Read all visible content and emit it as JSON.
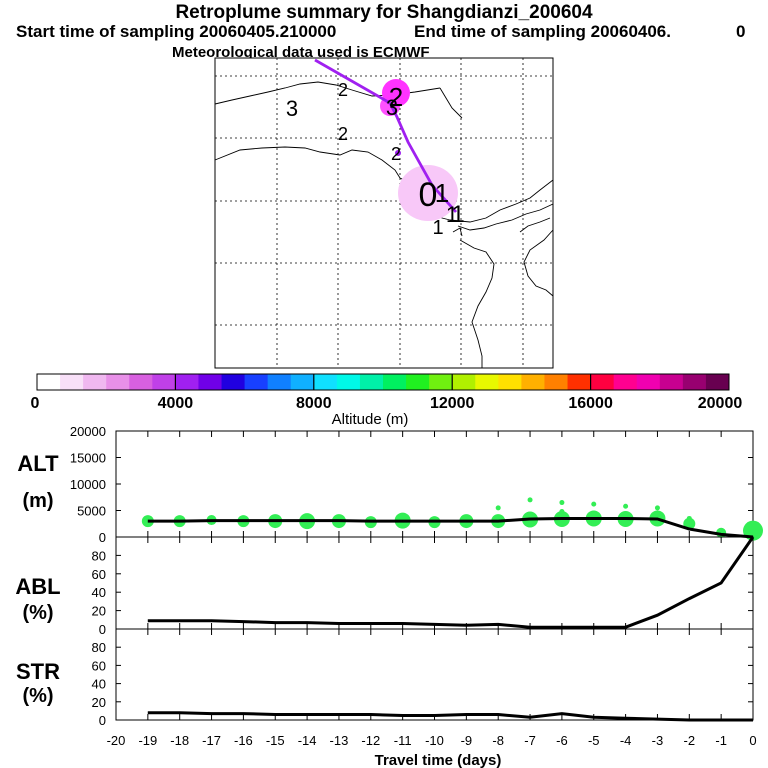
{
  "header": {
    "title": "Retroplume summary for Shangdianzi_200604",
    "start": "Start time of sampling 20060405.210000",
    "end": "End time of sampling 20060406.",
    "end_suffix": "0",
    "met": "Meteorological data used is ECMWF"
  },
  "colors": {
    "track": "#a020f0",
    "marker": "#ff33ff",
    "halo": "#f8c8f8",
    "alt_marker": "#33ee55",
    "line": "#000000"
  },
  "map": {
    "labels": [
      "3",
      "2",
      "2",
      "2",
      "3",
      "2",
      "1",
      "1",
      "1",
      "1",
      "0"
    ]
  },
  "colorbar": {
    "xlabel": "Altitude (m)",
    "ticks": [
      "0",
      "4000",
      "8000",
      "12000",
      "16000",
      "20000"
    ],
    "min": 0,
    "max": 20000,
    "colors": [
      "#ffffff",
      "#f8e0f8",
      "#f0b8f0",
      "#e890e8",
      "#d860e0",
      "#c040e8",
      "#a020f0",
      "#7000e8",
      "#2000e0",
      "#1840ff",
      "#1080ff",
      "#10b0ff",
      "#10e0ff",
      "#00f8e8",
      "#00f0a8",
      "#00f060",
      "#20f020",
      "#70f010",
      "#b0f000",
      "#e8f800",
      "#ffe000",
      "#ffb000",
      "#ff8000",
      "#ff3000",
      "#ff0040",
      "#ff0090",
      "#f000b0",
      "#c80090",
      "#980070",
      "#680050"
    ]
  },
  "chart_data": [
    {
      "type": "line",
      "panel": "ALT",
      "ylabel": "ALT\n(m)",
      "ylabel_line1": "ALT",
      "ylabel_line2": "(m)",
      "x": [
        -19,
        -18,
        -17,
        -16,
        -15,
        -14,
        -13,
        -12,
        -11,
        -10,
        -9,
        -8,
        -7,
        -6,
        -5,
        -4,
        -3,
        -2,
        -1,
        0
      ],
      "values": [
        3000,
        3000,
        3100,
        3100,
        3100,
        3100,
        3100,
        3000,
        3000,
        3000,
        3000,
        3000,
        3400,
        3500,
        3500,
        3500,
        3400,
        1500,
        500,
        0
      ],
      "ylim": [
        0,
        20000
      ],
      "yticks": [
        "0",
        "5000",
        "10000",
        "15000",
        "20000"
      ],
      "markers": {
        "x": [
          -19,
          -18,
          -17,
          -16,
          -15,
          -14,
          -13,
          -12,
          -11,
          -10,
          -9,
          -8,
          -7,
          -6,
          -5,
          -4,
          -3,
          -2,
          -1,
          0
        ],
        "values": [
          3000,
          3000,
          3200,
          3000,
          3000,
          3000,
          3000,
          2800,
          3100,
          2800,
          3000,
          3000,
          3300,
          3400,
          3500,
          3400,
          3500,
          2500,
          800,
          1200
        ],
        "sizes": [
          6,
          6,
          5,
          6,
          7,
          8,
          7,
          6,
          8,
          6,
          7,
          7,
          8,
          8,
          8,
          8,
          8,
          6,
          5,
          10
        ]
      },
      "outliers": {
        "x": [
          -8,
          -7,
          -6,
          -6,
          -5,
          -5,
          -4,
          -4,
          -3,
          -2
        ],
        "values": [
          5500,
          7000,
          6500,
          4800,
          6200,
          4500,
          5800,
          4200,
          5500,
          3500
        ]
      }
    },
    {
      "type": "line",
      "panel": "ABL",
      "ylabel": "ABL\n(%)",
      "ylabel_line1": "ABL",
      "ylabel_line2": "(%)",
      "x": [
        -19,
        -18,
        -17,
        -16,
        -15,
        -14,
        -13,
        -12,
        -11,
        -10,
        -9,
        -8,
        -7,
        -6,
        -5,
        -4,
        -3,
        -2,
        -1,
        0
      ],
      "values": [
        9,
        9,
        9,
        8,
        7,
        7,
        6,
        6,
        6,
        5,
        4,
        5,
        2,
        2,
        2,
        2,
        15,
        33,
        50,
        100
      ],
      "ylim": [
        0,
        100
      ],
      "yticks": [
        "0",
        "20",
        "40",
        "60",
        "80"
      ]
    },
    {
      "type": "line",
      "panel": "STR",
      "ylabel": "STR\n(%)",
      "ylabel_line1": "STR",
      "ylabel_line2": "(%)",
      "x": [
        -19,
        -18,
        -17,
        -16,
        -15,
        -14,
        -13,
        -12,
        -11,
        -10,
        -9,
        -8,
        -7,
        -6,
        -5,
        -4,
        -3,
        -2,
        -1,
        0
      ],
      "values": [
        8,
        8,
        7,
        7,
        6,
        6,
        6,
        6,
        5,
        5,
        6,
        6,
        3,
        7,
        3,
        2,
        1,
        0,
        0,
        0
      ],
      "ylim": [
        0,
        100
      ],
      "yticks": [
        "0",
        "20",
        "40",
        "60",
        "80"
      ]
    }
  ],
  "xaxis": {
    "xlabel": "Travel time (days)",
    "ticks": [
      "-20",
      "-19",
      "-18",
      "-17",
      "-16",
      "-15",
      "-14",
      "-13",
      "-12",
      "-11",
      "-10",
      "-9",
      "-8",
      "-7",
      "-6",
      "-5",
      "-4",
      "-3",
      "-2",
      "-1",
      "0"
    ],
    "xlim": [
      -20,
      0
    ]
  }
}
